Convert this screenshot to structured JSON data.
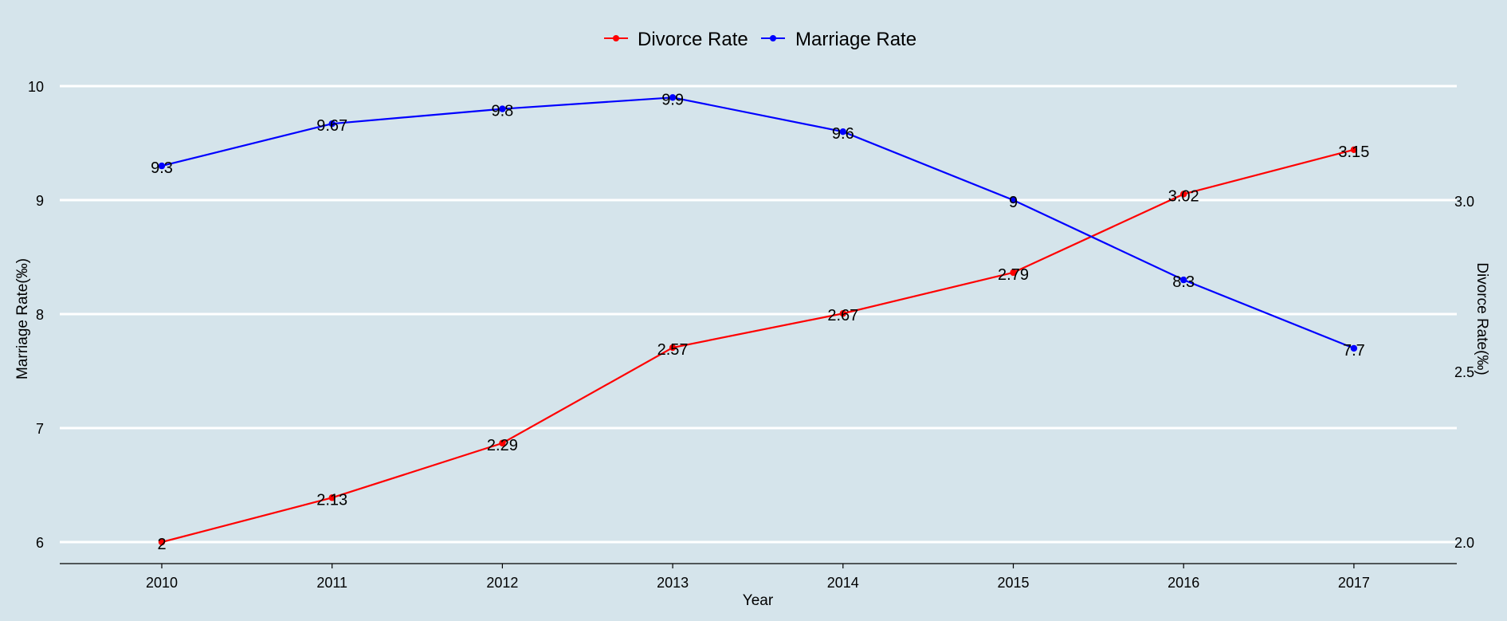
{
  "chart_data": {
    "type": "line",
    "categories": [
      "2010",
      "2011",
      "2012",
      "2013",
      "2014",
      "2015",
      "2016",
      "2017"
    ],
    "xlabel": "Year",
    "ylabel_left": "Marriage Rate(‰)",
    "ylabel_right": "Divorce Rate(‰)",
    "ylim_left": [
      6,
      10
    ],
    "yticks_left": [
      6,
      7,
      8,
      9,
      10
    ],
    "ylim_right": [
      2.0,
      3.0
    ],
    "yticks_right": [
      "2.0",
      "2.5",
      "3.0"
    ],
    "grid": true,
    "legend_position": "top-center",
    "series": [
      {
        "name": "Divorce Rate",
        "axis": "right",
        "color": "#ff0000",
        "values": [
          2,
          2.13,
          2.29,
          2.57,
          2.67,
          2.79,
          3.02,
          3.15
        ],
        "labels": [
          "2",
          "2.13",
          "2.29",
          "2.57",
          "2.67",
          "2.79",
          "3.02",
          "3.15"
        ]
      },
      {
        "name": "Marriage Rate",
        "axis": "left",
        "color": "#0000ff",
        "values": [
          9.3,
          9.67,
          9.8,
          9.9,
          9.6,
          9,
          8.3,
          7.7
        ],
        "labels": [
          "9.3",
          "9.67",
          "9.8",
          "9.9",
          "9.6",
          "9",
          "8.3",
          "7.7"
        ]
      }
    ]
  },
  "colors": {
    "background": "#d5e4eb",
    "grid": "#ffffff"
  }
}
